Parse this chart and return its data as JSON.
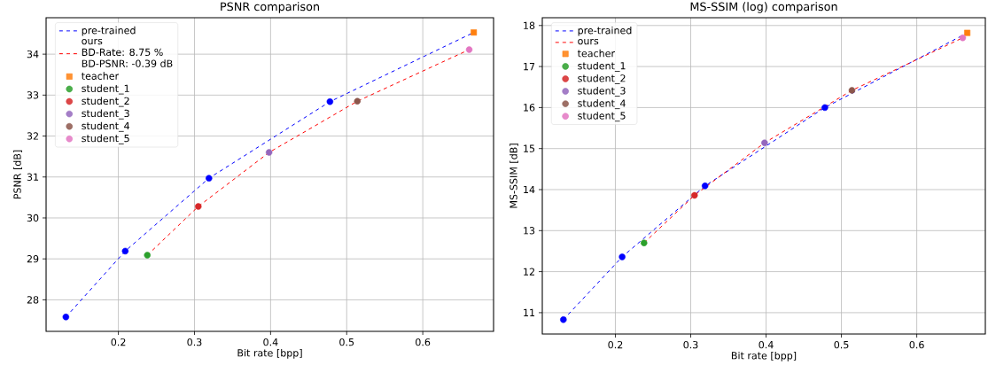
{
  "chart_data": [
    {
      "type": "line",
      "title": "PSNR comparison",
      "xlabel": "Bit rate [bpp]",
      "ylabel": "PSNR [dB]",
      "xlim": [
        0.105,
        0.693
      ],
      "ylim": [
        27.23,
        34.89
      ],
      "xticks": [
        0.2,
        0.3,
        0.4,
        0.5,
        0.6
      ],
      "yticks": [
        28,
        29,
        30,
        31,
        32,
        33,
        34
      ],
      "grid": true,
      "legend": "top left",
      "series": [
        {
          "name": "pre-trained",
          "line_style": "dashed",
          "color": "#0000ff",
          "x": [
            0.131,
            0.209,
            0.319,
            0.478,
            0.667
          ],
          "values": [
            27.58,
            29.19,
            30.97,
            32.84,
            34.53
          ]
        },
        {
          "name": "ours\nBD-Rate: 8.75 %\nBD-PSNR: -0.39 dB",
          "line_style": "dashed",
          "color": "#ff0000",
          "x": [
            0.238,
            0.305,
            0.398,
            0.514,
            0.661
          ],
          "values": [
            29.09,
            30.28,
            31.6,
            32.85,
            34.11
          ]
        },
        {
          "type": "scatter",
          "marker": "circle",
          "color": "#0000ff",
          "x": [
            0.131,
            0.209,
            0.319,
            0.478
          ],
          "values": [
            27.58,
            29.19,
            30.97,
            32.84
          ]
        },
        {
          "name": "teacher",
          "type": "scatter",
          "marker": "square",
          "color": "#ff7f0e",
          "x": [
            0.667
          ],
          "values": [
            34.53
          ]
        },
        {
          "name": "student_1",
          "type": "scatter",
          "marker": "circle",
          "color": "#2ca02c",
          "x": [
            0.238
          ],
          "values": [
            29.09
          ]
        },
        {
          "name": "student_2",
          "type": "scatter",
          "marker": "circle",
          "color": "#d62728",
          "x": [
            0.305
          ],
          "values": [
            30.28
          ]
        },
        {
          "name": "student_3",
          "type": "scatter",
          "marker": "circle",
          "color": "#9467bd",
          "x": [
            0.398
          ],
          "values": [
            31.6
          ]
        },
        {
          "name": "student_4",
          "type": "scatter",
          "marker": "circle",
          "color": "#8c564b",
          "x": [
            0.514
          ],
          "values": [
            32.85
          ]
        },
        {
          "name": "student_5",
          "type": "scatter",
          "marker": "circle",
          "color": "#e377c2",
          "x": [
            0.661
          ],
          "values": [
            34.11
          ]
        }
      ]
    },
    {
      "type": "line",
      "title": "MS-SSIM (log) comparison",
      "xlabel": "Bit rate [bpp]",
      "ylabel": "MS-SSIM [dB]",
      "xlim": [
        0.103,
        0.691
      ],
      "ylim": [
        10.48,
        18.19
      ],
      "xticks": [
        0.2,
        0.3,
        0.4,
        0.5,
        0.6
      ],
      "yticks": [
        11,
        12,
        13,
        14,
        15,
        16,
        17,
        18
      ],
      "grid": true,
      "legend": "top left",
      "series": [
        {
          "name": "pre-trained",
          "line_style": "dashed",
          "color": "#0000ff",
          "x": [
            0.131,
            0.209,
            0.319,
            0.478,
            0.667
          ],
          "values": [
            10.83,
            12.36,
            14.09,
            16.0,
            17.82
          ]
        },
        {
          "name": "ours",
          "line_style": "dashed",
          "color": "#ff0000",
          "x": [
            0.238,
            0.305,
            0.398,
            0.514,
            0.661
          ],
          "values": [
            12.7,
            13.86,
            15.14,
            16.42,
            17.7
          ]
        },
        {
          "type": "scatter",
          "marker": "circle",
          "color": "#0000ff",
          "x": [
            0.131,
            0.209,
            0.319,
            0.478
          ],
          "values": [
            10.83,
            12.36,
            14.09,
            16.0
          ]
        },
        {
          "name": "teacher",
          "type": "scatter",
          "marker": "square",
          "color": "#ff7f0e",
          "x": [
            0.667
          ],
          "values": [
            17.82
          ]
        },
        {
          "name": "student_1",
          "type": "scatter",
          "marker": "circle",
          "color": "#2ca02c",
          "x": [
            0.238
          ],
          "values": [
            12.7
          ]
        },
        {
          "name": "student_2",
          "type": "scatter",
          "marker": "circle",
          "color": "#d62728",
          "x": [
            0.305
          ],
          "values": [
            13.86
          ]
        },
        {
          "name": "student_3",
          "type": "scatter",
          "marker": "circle",
          "color": "#9467bd",
          "x": [
            0.398
          ],
          "values": [
            15.14
          ]
        },
        {
          "name": "student_4",
          "type": "scatter",
          "marker": "circle",
          "color": "#8c564b",
          "x": [
            0.514
          ],
          "values": [
            16.42
          ]
        },
        {
          "name": "student_5",
          "type": "scatter",
          "marker": "circle",
          "color": "#e377c2",
          "x": [
            0.661
          ],
          "values": [
            17.7
          ]
        }
      ]
    }
  ]
}
